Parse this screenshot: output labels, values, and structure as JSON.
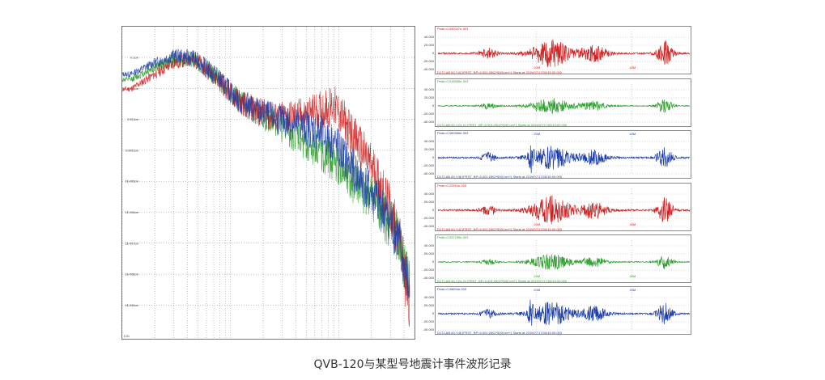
{
  "caption": "QVB-120与某型号地震计事件波形记录",
  "chart_data": [
    {
      "type": "line",
      "title": "",
      "scale": "log-log",
      "grid": true,
      "y_tick_labels": [
        "0.1cm",
        "0.01cm",
        "0.001cm",
        "0.0001cm",
        "1E-005cm",
        "1E-006cm",
        "1E-007cm",
        "1E-008cm",
        "1E-009cm"
      ],
      "x_start_label": "0.01",
      "series": [
        {
          "color": "#cc2222",
          "points": [
            [
              0.012,
              0.01
            ],
            [
              0.02,
              0.03
            ],
            [
              0.03,
              0.07
            ],
            [
              0.045,
              0.1
            ],
            [
              0.07,
              0.03
            ],
            [
              0.12,
              0.004
            ],
            [
              0.25,
              0.0012
            ],
            [
              0.5,
              0.0015
            ],
            [
              0.9,
              0.003
            ],
            [
              1.3,
              0.0004
            ],
            [
              2.2,
              2e-05
            ],
            [
              3.5,
              3e-07
            ],
            [
              4.5,
              1e-09
            ]
          ]
        },
        {
          "color": "#2e9e2e",
          "points": [
            [
              0.012,
              0.02
            ],
            [
              0.02,
              0.05
            ],
            [
              0.03,
              0.08
            ],
            [
              0.045,
              0.09
            ],
            [
              0.07,
              0.03
            ],
            [
              0.12,
              0.004
            ],
            [
              0.25,
              0.0009
            ],
            [
              0.5,
              0.0002
            ],
            [
              0.9,
              5e-05
            ],
            [
              1.3,
              1e-05
            ],
            [
              2.2,
              2e-06
            ],
            [
              3.5,
              2e-07
            ],
            [
              4.5,
              5e-09
            ]
          ]
        },
        {
          "color": "#1f3fa8",
          "points": [
            [
              0.012,
              0.03
            ],
            [
              0.02,
              0.07
            ],
            [
              0.03,
              0.12
            ],
            [
              0.045,
              0.1
            ],
            [
              0.07,
              0.03
            ],
            [
              0.12,
              0.004
            ],
            [
              0.25,
              0.0012
            ],
            [
              0.5,
              0.0006
            ],
            [
              0.9,
              0.0002
            ],
            [
              1.3,
              3e-05
            ],
            [
              2.2,
              3e-06
            ],
            [
              3.5,
              2e-07
            ],
            [
              4.5,
              3e-09
            ]
          ]
        }
      ]
    },
    {
      "type": "line",
      "panels": [
        {
          "color": "#cc2222",
          "peak": "Peak=0.000047e-003",
          "footer": "D172.AB.00-Y42  [FRST_BP=0.001:2502*500] nm*1 Starts at 2019/07/17/00/15:00.000",
          "ylabels": [
            "40.000",
            "20.000",
            "0",
            "-20.000",
            "-40.000"
          ],
          "markers": [
            "20M",
            "40M"
          ],
          "amp": 1.0,
          "seed": 1
        },
        {
          "color": "#2e9e2e",
          "peak": "Peak=0.016556e-003",
          "footer": "D172.AB.00-Y24-X1  [FRST_BP=0.001:2502*500] nm*1 Starts at 2019/07/17/00/15:00.000",
          "ylabels": [
            "40.000",
            "20.000",
            "0",
            "-20.000",
            "-40.000"
          ],
          "markers": [
            "",
            ""
          ],
          "amp": 0.55,
          "seed": 2
        },
        {
          "color": "#1f3fa8",
          "peak": "Peak=0.060856e-003",
          "footer": "D172.AB.00-Y46  [FRST_BP=0.001:2502*500] nm*1 Starts at 2019/07/17/00/15:00.000",
          "ylabels": [
            "40.000",
            "20.000",
            "0",
            "-20.000",
            "-40.000"
          ],
          "markers": [
            "20M",
            "40M"
          ],
          "amp": 0.85,
          "seed": 3
        },
        {
          "color": "#cc2222",
          "peak": "Peak=0.22551e-003",
          "footer": "D172.AB.00-Y42  [FRST_BP=0.001:2502*500] nm*1 Starts at 2019/07/17/00/15:00.000",
          "ylabels": [
            "40.000",
            "20.000",
            "0",
            "-20.000",
            "-40.000"
          ],
          "markers": [
            "20M",
            "40M"
          ],
          "amp": 1.0,
          "seed": 4
        },
        {
          "color": "#2e9e2e",
          "peak": "Peak=0.022759e-003",
          "footer": "D172.AB.00-Y24-X1  [FRST_BP=0.001:2502*500] nm*1 Starts at 2019/07/17/00/15:00.000",
          "ylabels": [
            "40.000",
            "20.000",
            "0",
            "-20.000",
            "-40.000"
          ],
          "markers": [
            "20M",
            "40M"
          ],
          "amp": 0.55,
          "seed": 5
        },
        {
          "color": "#1f3fa8",
          "peak": "Peak=0.08894e-003",
          "footer": "D172.AB.00-Y46  [FRST_BP=0.001:2502*500] nm*1 Starts at 2019/07/17/00/15:00.000",
          "ylabels": [
            "40.000",
            "20.000",
            "0",
            "-20.000",
            "-40.000"
          ],
          "markers": [
            "20M",
            "40M"
          ],
          "amp": 0.85,
          "seed": 6
        }
      ]
    }
  ]
}
